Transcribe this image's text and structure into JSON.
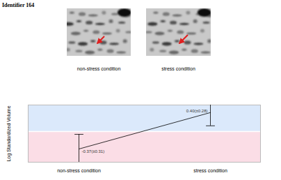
{
  "header": {
    "identifier": "Identifier 164",
    "gel_labels": [
      "non-stress condition",
      "stress condition"
    ]
  },
  "chart_data": {
    "type": "line",
    "y_label": "Log Standardized Volume",
    "categories": [
      "non-stress condition",
      "stress condition"
    ],
    "values": [
      -0.37,
      0.4
    ],
    "errors": [
      0.31,
      0.28
    ],
    "value_labels": [
      "-0.37(±0.31)",
      "0.40(±0.28)"
    ],
    "data_labels": true,
    "ylim": [
      -0.65,
      0.56
    ],
    "yticks": [],
    "tick_labels": "x",
    "color": "#000000"
  }
}
